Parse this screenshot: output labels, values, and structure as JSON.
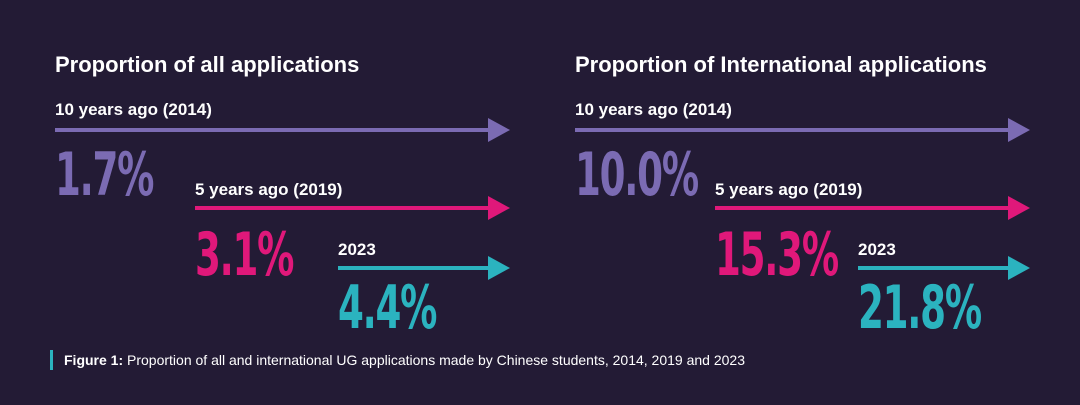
{
  "colors": {
    "background": "#231b35",
    "purple": "#7b6bb3",
    "pink": "#e0187a",
    "teal": "#2bb3bf"
  },
  "chart_data": [
    {
      "type": "bar",
      "title": "Proportion of all applications",
      "categories": [
        "10 years ago (2014)",
        "5 years ago (2019)",
        "2023"
      ],
      "values": [
        1.7,
        3.1,
        4.4
      ],
      "labels": [
        "1.7%",
        "3.1%",
        "4.4%"
      ],
      "unit": "%"
    },
    {
      "type": "bar",
      "title": "Proportion of International applications",
      "categories": [
        "10 years ago (2014)",
        "5 years ago (2019)",
        "2023"
      ],
      "values": [
        10.0,
        15.3,
        21.8
      ],
      "labels": [
        "10.0%",
        "15.3%",
        "21.8%"
      ],
      "unit": "%"
    }
  ],
  "caption": {
    "label": "Figure 1:",
    "text": " Proportion of all and international UG applications made by Chinese students, 2014, 2019 and 2023"
  }
}
